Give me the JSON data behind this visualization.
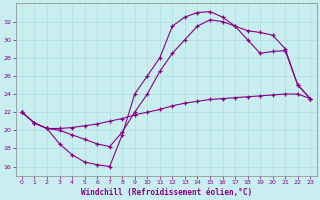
{
  "background_color": "#c8eef0",
  "grid_color": "#b0dde0",
  "line_color": "#880088",
  "xlabel": "Windchill (Refroidissement éolien,°C)",
  "xlabel_color": "#880088",
  "tick_color": "#880088",
  "xlim": [
    -0.5,
    23.5
  ],
  "ylim": [
    15.0,
    34.0
  ],
  "yticks": [
    16,
    18,
    20,
    22,
    24,
    26,
    28,
    30,
    32
  ],
  "xticks": [
    0,
    1,
    2,
    3,
    4,
    5,
    6,
    7,
    8,
    9,
    10,
    11,
    12,
    13,
    14,
    15,
    16,
    17,
    18,
    19,
    20,
    21,
    22,
    23
  ],
  "curve1_y": [
    22.0,
    20.8,
    20.2,
    18.5,
    17.3,
    16.5,
    16.2,
    16.0,
    19.5,
    24.0,
    26.0,
    28.0,
    31.5,
    32.5,
    33.0,
    33.1,
    32.5,
    31.5,
    30.0,
    28.5,
    28.7,
    28.8,
    25.0,
    23.5
  ],
  "curve2_y": [
    22.0,
    20.8,
    20.2,
    20.2,
    20.3,
    20.5,
    20.7,
    21.0,
    21.3,
    21.7,
    22.0,
    22.3,
    22.7,
    23.0,
    23.2,
    23.4,
    23.5,
    23.6,
    23.7,
    23.8,
    23.9,
    24.0,
    24.0,
    23.5
  ],
  "curve3_y": [
    22.0,
    20.8,
    20.2,
    20.0,
    19.5,
    19.0,
    18.5,
    18.2,
    19.8,
    22.0,
    24.0,
    26.5,
    28.5,
    30.0,
    31.5,
    32.2,
    32.0,
    31.5,
    31.0,
    30.8,
    30.5,
    29.0,
    25.0,
    23.5
  ]
}
